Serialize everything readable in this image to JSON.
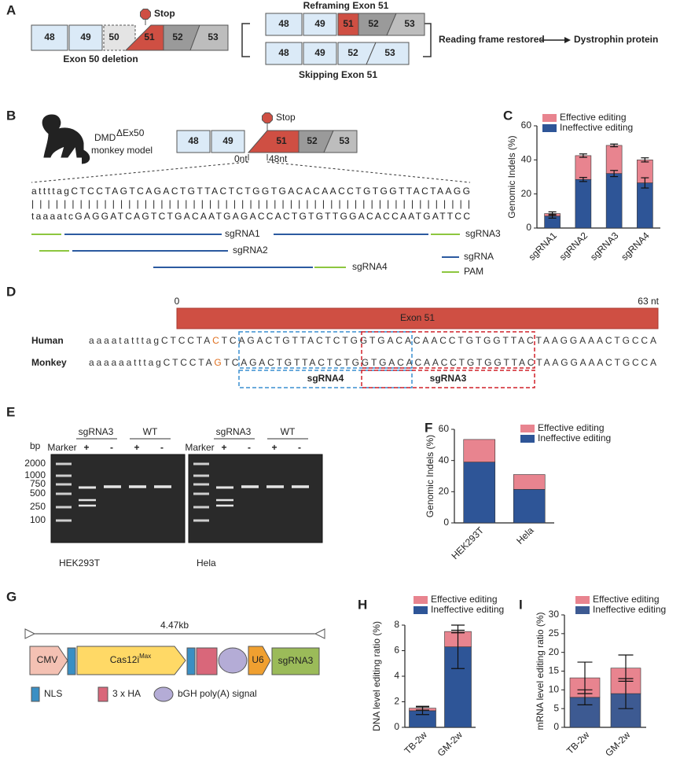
{
  "panel_labels": [
    "A",
    "B",
    "C",
    "D",
    "E",
    "F",
    "G",
    "H",
    "I"
  ],
  "panel_a": {
    "exons": [
      "48",
      "49",
      "50",
      "51",
      "52",
      "53"
    ],
    "stop": "Stop",
    "deletion_label": "Exon 50 deletion",
    "reframing": "Reframing Exon 51",
    "skipping": "Skipping Exon 51",
    "restored": "Reading frame restored",
    "protein": "Dystrophin protein"
  },
  "panel_b": {
    "model_prefix": "DMD",
    "model_sup": "ΔEx50",
    "model_suffix": "monkey model",
    "stop": "Stop",
    "pos_start": "0nt",
    "pos_end": "48nt",
    "seq_top": "attttagCTCCTAGTCAGACTGTTACTCTGGTGACACAACCTGTGGTTACTAAGG",
    "pairs": "|||||||||||||||||||||||||||||||||||||||||||||||||||||||",
    "seq_bottom": "taaaatcGAGGATCAGTCTGACAATGAGACCACTGTGTTGGACACCAATGATTCC",
    "guides": [
      "sgRNA1",
      "sgRNA2",
      "sgRNA3",
      "sgRNA4"
    ],
    "legend": [
      "sgRNA",
      "PAM"
    ]
  },
  "panel_d": {
    "start": "0",
    "end": "63 nt",
    "exon": "Exon 51",
    "species": [
      "Human",
      "Monkey"
    ],
    "human": [
      "aaaatatttagCTCCTA",
      "C",
      "TCAGACTGTTACTCTGGTGACACAACCTGTGGTTACTAAGGAAACTGCCA"
    ],
    "monkey": [
      "aaaaaatttagCTCCTA",
      "G",
      "TCAGACTGTTACTCTGGTGACACAACCTGTGGTTACTAAGGAAACTGCCA"
    ],
    "guides": [
      "sgRNA4",
      "sgRNA3"
    ]
  },
  "panel_e": {
    "bp": "bp",
    "marker": "Marker",
    "groups": [
      "sgRNA3",
      "WT"
    ],
    "signs": [
      "+",
      "-"
    ],
    "sizes": [
      "2000",
      "1000",
      "750",
      "500",
      "250",
      "100"
    ],
    "cells": [
      "HEK293T",
      "Hela"
    ]
  },
  "panel_g": {
    "size": "4.47kb",
    "promoter": "CMV",
    "cas": "Cas12i",
    "cas_sup": "Max",
    "u6": "U6",
    "guide": "sgRNA3",
    "legend": [
      "NLS",
      "3 x HA",
      "bGH poly(A) signal"
    ]
  },
  "chart_data": [
    {
      "type": "bar",
      "stacked": true,
      "ylabel": "Genomic Indels (%)",
      "categories": [
        "sgRNA1",
        "sgRNA2",
        "sgRNA3",
        "sgRNA4"
      ],
      "series": [
        {
          "name": "Ineffective editing",
          "color": "#2e5597",
          "values": [
            7,
            28.5,
            32,
            26.5
          ],
          "errors": [
            1.2,
            1.2,
            1.8,
            3
          ]
        },
        {
          "name": "Effective editing",
          "color": "#e8848f",
          "values": [
            1.5,
            14,
            16.5,
            13.5
          ],
          "errors": [
            1,
            1,
            0.8,
            1.2
          ]
        }
      ],
      "ylim": [
        0,
        60
      ],
      "yticks": [
        0,
        20,
        40,
        60
      ]
    },
    {
      "type": "bar",
      "stacked": true,
      "ylabel": "Genomic Indels (%)",
      "categories": [
        "HEK293T",
        "Hela"
      ],
      "series": [
        {
          "name": "Ineffective editing",
          "color": "#2e5597",
          "values": [
            39,
            21.5
          ]
        },
        {
          "name": "Effective editing",
          "color": "#e8848f",
          "values": [
            14.5,
            9.5
          ]
        }
      ],
      "ylim": [
        0,
        60
      ],
      "yticks": [
        0,
        20,
        40,
        60
      ]
    },
    {
      "type": "bar",
      "stacked": true,
      "ylabel": "DNA level editing ratio (%)",
      "categories": [
        "TB-2w",
        "GM-2w"
      ],
      "series": [
        {
          "name": "Ineffective editing",
          "color": "#2e5597",
          "values": [
            1.3,
            6.3
          ],
          "errors": [
            0.3,
            1.7
          ]
        },
        {
          "name": "Effective editing",
          "color": "#e8848f",
          "values": [
            0.2,
            1.2
          ],
          "errors": [
            0.15,
            0.1
          ]
        }
      ],
      "ylim": [
        0,
        8
      ],
      "yticks": [
        0,
        2,
        4,
        6,
        8
      ]
    },
    {
      "type": "bar",
      "stacked": true,
      "ylabel": "mRNA level editing ratio (%)",
      "categories": [
        "TB-2w",
        "GM-2w"
      ],
      "series": [
        {
          "name": "Ineffective editing",
          "color": "#3d5a92",
          "values": [
            8,
            9
          ],
          "errors": [
            2,
            4
          ]
        },
        {
          "name": "Effective editing",
          "color": "#e8848f",
          "values": [
            5.2,
            6.8
          ],
          "errors": [
            4.2,
            3.5
          ]
        }
      ],
      "ylim": [
        0,
        30
      ],
      "yticks": [
        0,
        5,
        10,
        15,
        20,
        25,
        30
      ]
    }
  ]
}
